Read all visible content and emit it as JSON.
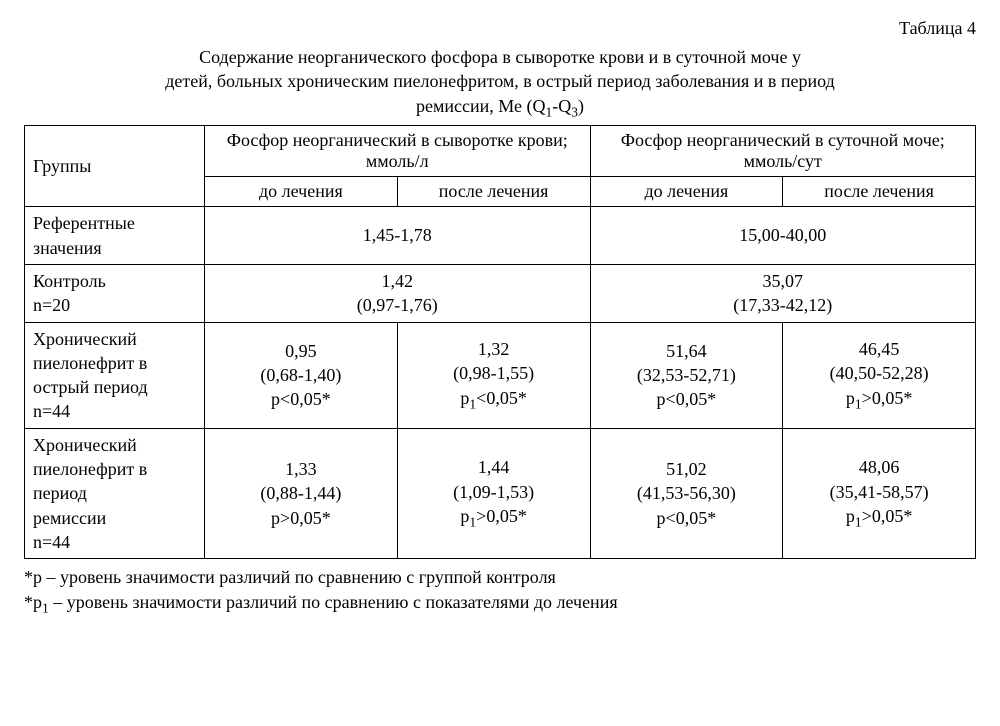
{
  "table_label": "Таблица 4",
  "caption_line1": "Содержание неорганического фосфора в сыворотке крови и в суточной моче у",
  "caption_line2": "детей, больных хроническим пиелонефритом,  в острый период заболевания и в период",
  "caption_line3": "ремиссии, Ме (Q",
  "caption_q1": "1",
  "caption_dash": "-Q",
  "caption_q3": "3",
  "caption_close": ")",
  "headers": {
    "groups": "Группы",
    "serum": "Фосфор неорганический в сыворотке крови; ммоль/л",
    "urine": "Фосфор неорганический в суточной моче; ммоль/сут",
    "before": "до лечения",
    "after": "после лечения"
  },
  "rows": {
    "ref": {
      "label_l1": "Референтные",
      "label_l2": "значения",
      "serum": "1,45-1,78",
      "urine": "15,00-40,00"
    },
    "control": {
      "label_l1": "Контроль",
      "label_l2": "n=20",
      "serum_l1": "1,42",
      "serum_l2": "(0,97-1,76)",
      "urine_l1": "35,07",
      "urine_l2": "(17,33-42,12)"
    },
    "acute": {
      "label_l1": "Хронический",
      "label_l2": "пиелонефрит в",
      "label_l3": "острый период",
      "label_l4": "n=44",
      "serum_before_l1": "0,95",
      "serum_before_l2": "(0,68-1,40)",
      "serum_before_l3": "p<0,05*",
      "serum_after_l1": "1,32",
      "serum_after_l2": "(0,98-1,55)",
      "serum_after_l3_pre": "p",
      "serum_after_l3_sub": "1",
      "serum_after_l3_post": "<0,05*",
      "urine_before_l1": "51,64",
      "urine_before_l2": "(32,53-52,71)",
      "urine_before_l3": "p<0,05*",
      "urine_after_l1": "46,45",
      "urine_after_l2": "(40,50-52,28)",
      "urine_after_l3_pre": "p",
      "urine_after_l3_sub": "1",
      "urine_after_l3_post": ">0,05*"
    },
    "remission": {
      "label_l1": "Хронический",
      "label_l2": "пиелонефрит в",
      "label_l3": "период",
      "label_l4": "ремиссии",
      "label_l5": "n=44",
      "serum_before_l1": "1,33",
      "serum_before_l2": "(0,88-1,44)",
      "serum_before_l3": "p>0,05*",
      "serum_after_l1": "1,44",
      "serum_after_l2": "(1,09-1,53)",
      "serum_after_l3_pre": "p",
      "serum_after_l3_sub": "1",
      "serum_after_l3_post": ">0,05*",
      "urine_before_l1": "51,02",
      "urine_before_l2": "(41,53-56,30)",
      "urine_before_l3": "p<0,05*",
      "urine_after_l1": "48,06",
      "urine_after_l2": "(35,41-58,57)",
      "urine_after_l3_pre": "p",
      "urine_after_l3_sub": "1",
      "urine_after_l3_post": ">0,05*"
    }
  },
  "footnotes": {
    "f1": "*p – уровень значимости различий по сравнению с группой контроля",
    "f2_pre": "*p",
    "f2_sub": "1",
    "f2_post": " – уровень значимости различий по сравнению с показателями до лечения"
  }
}
